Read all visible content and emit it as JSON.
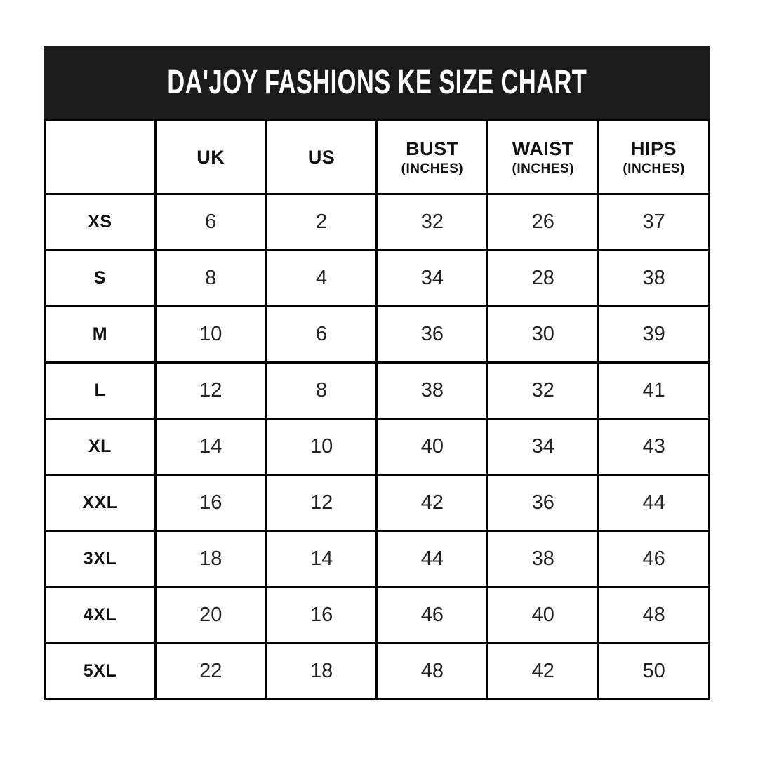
{
  "chart_data": {
    "type": "table",
    "title": "DA'JOY FASHIONS KE SIZE CHART",
    "columns": [
      {
        "label": "",
        "sub": ""
      },
      {
        "label": "UK",
        "sub": ""
      },
      {
        "label": "US",
        "sub": ""
      },
      {
        "label": "BUST",
        "sub": "(INCHES)"
      },
      {
        "label": "WAIST",
        "sub": "(INCHES)"
      },
      {
        "label": "HIPS",
        "sub": "(INCHES)"
      }
    ],
    "rows": [
      [
        "XS",
        "6",
        "2",
        "32",
        "26",
        "37"
      ],
      [
        "S",
        "8",
        "4",
        "34",
        "28",
        "38"
      ],
      [
        "M",
        "10",
        "6",
        "36",
        "30",
        "39"
      ],
      [
        "L",
        "12",
        "8",
        "38",
        "32",
        "41"
      ],
      [
        "XL",
        "14",
        "10",
        "40",
        "34",
        "43"
      ],
      [
        "XXL",
        "16",
        "12",
        "42",
        "36",
        "44"
      ],
      [
        "3XL",
        "18",
        "14",
        "44",
        "38",
        "46"
      ],
      [
        "4XL",
        "20",
        "16",
        "46",
        "40",
        "48"
      ],
      [
        "5XL",
        "22",
        "18",
        "48",
        "42",
        "50"
      ]
    ]
  },
  "colors": {
    "background": "#ffffff",
    "bar_bg": "#1b1b1b",
    "bar_text": "#ffffff",
    "border": "#000000",
    "cell_text": "#222222",
    "label_text": "#111111"
  }
}
